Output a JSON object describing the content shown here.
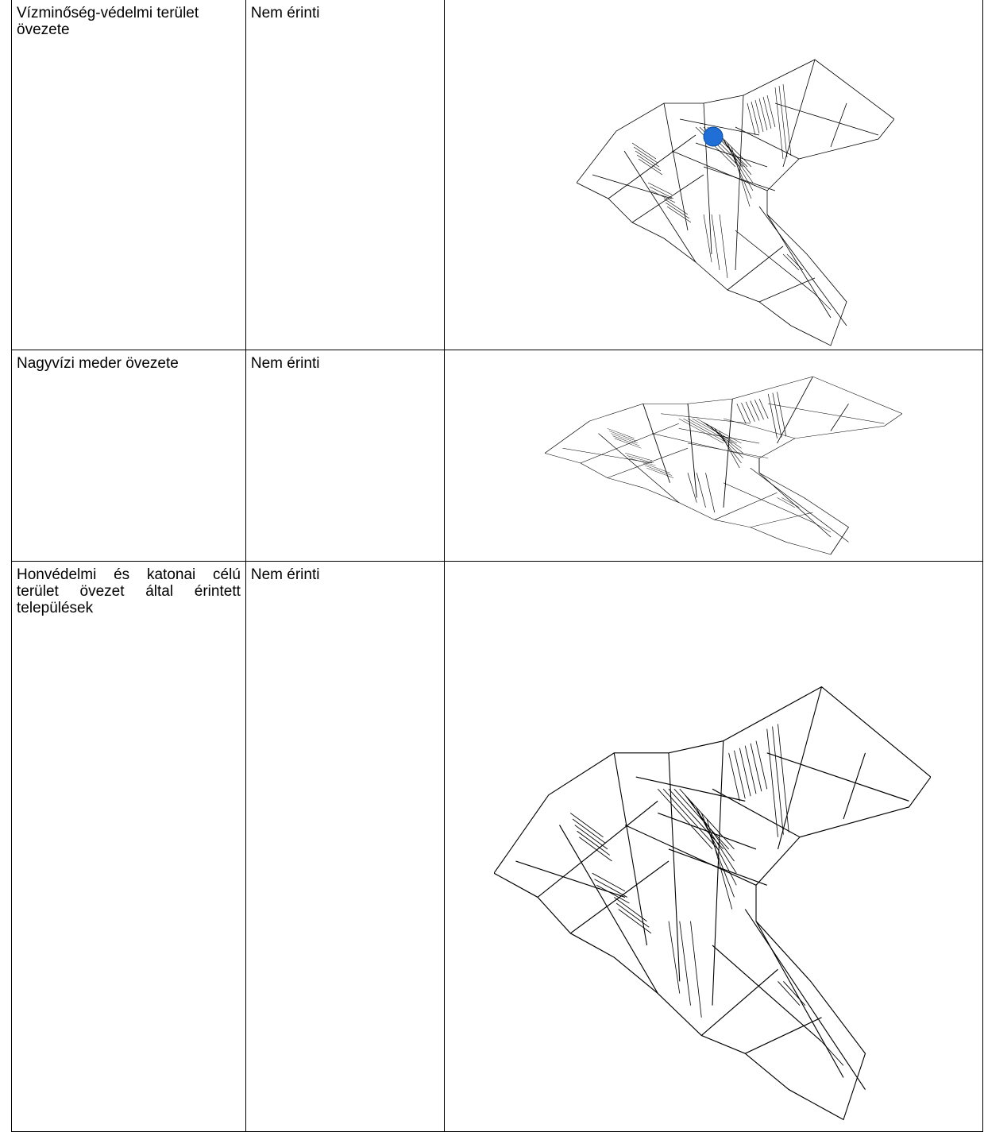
{
  "table": {
    "rows": [
      [
        "Vízminőség-védelmi terület övezete",
        "Nem érinti"
      ],
      [
        "Nagyvízi meder övezete",
        "Nem érinti"
      ],
      [
        "Honvédelmi és katonai célú terület övezet által érintett települések",
        "Nem érinti"
      ]
    ]
  }
}
